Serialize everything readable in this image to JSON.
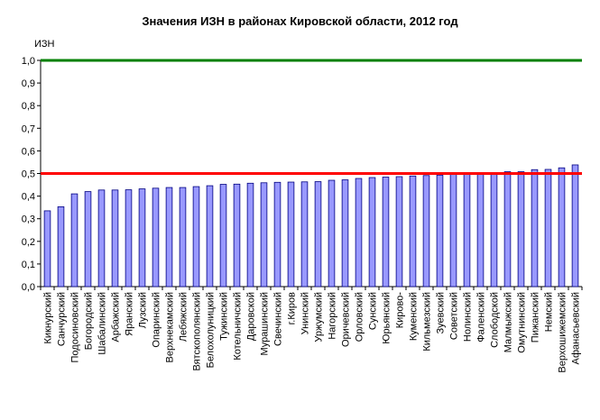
{
  "chart_data": {
    "type": "bar",
    "title": "Значения ИЗН в районах Кировской области, 2012 год",
    "ylabel": "ИЗН",
    "xlabel": "",
    "ylim": [
      0,
      1.0
    ],
    "yticks": [
      "0,0",
      "0,1",
      "0,2",
      "0,3",
      "0,4",
      "0,5",
      "0,6",
      "0,7",
      "0,8",
      "0,9",
      "1,0"
    ],
    "grid": false,
    "legend": "none",
    "bar_color": "#9999ff",
    "bar_border": "#000080",
    "reference_lines": [
      {
        "value": 1.0,
        "color": "#008000"
      },
      {
        "value": 0.5,
        "color": "#ff0000"
      }
    ],
    "categories": [
      "Кикнурский",
      "Санчурский",
      "Подосиновский",
      "Богородский",
      "Шабалинский",
      "Арбажский",
      "Яранский",
      "Лузский",
      "Опаринский",
      "Верхнекамский",
      "Лебяжский",
      "Вятскополянский",
      "Белохолуницкий",
      "Тужинский",
      "Котельничский",
      "Даровской",
      "Мурашинский",
      "Свечинский",
      "г.Киров",
      "Унинский",
      "Уржумский",
      "Нагорский",
      "Оричевский",
      "Орловский",
      "Сунский",
      "Юрьянский",
      "Кирово-",
      "Куменский",
      "Кильмезский",
      "Зуевский",
      "Советский",
      "Нолинский",
      "Фаленский",
      "Слободской",
      "Малмыжский",
      "Омутнинский",
      "Пижанский",
      "Немский",
      "Верхошижемский",
      "Афанасьевский"
    ],
    "values": [
      0.335,
      0.353,
      0.41,
      0.42,
      0.427,
      0.427,
      0.428,
      0.432,
      0.435,
      0.438,
      0.438,
      0.442,
      0.446,
      0.452,
      0.453,
      0.457,
      0.459,
      0.461,
      0.462,
      0.463,
      0.464,
      0.47,
      0.472,
      0.478,
      0.482,
      0.484,
      0.486,
      0.489,
      0.491,
      0.493,
      0.496,
      0.497,
      0.499,
      0.501,
      0.508,
      0.508,
      0.517,
      0.518,
      0.525,
      0.538
    ]
  }
}
